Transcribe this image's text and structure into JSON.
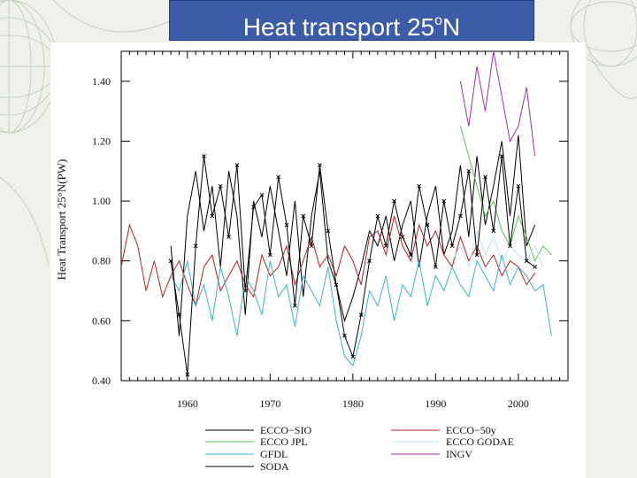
{
  "title": {
    "main": "Heat transport 25",
    "sup": "o",
    "end": "N"
  },
  "chart_data": {
    "type": "line",
    "title": "Heat transport 25oN",
    "xlabel": "",
    "ylabel": "Heat Transport 25°N(PW)",
    "xlim": [
      1952,
      2006
    ],
    "ylim": [
      0.4,
      1.5
    ],
    "xticks": [
      1960,
      1970,
      1980,
      1990,
      2000
    ],
    "yticks": [
      0.4,
      0.6,
      0.8,
      1.0,
      1.2,
      1.4
    ],
    "ytick_labels": [
      "0.40",
      "0.60",
      "0.80",
      "1.00",
      "1.20",
      "1.40"
    ],
    "series": [
      {
        "name": "ECCO−SIO",
        "color": "#000000",
        "x": [
          1958,
          1959,
          1960,
          1961,
          1962,
          1963,
          1964,
          1965,
          1966,
          1967,
          1968,
          1969,
          1970,
          1971,
          1972,
          1973,
          1974,
          1975,
          1976,
          1977,
          1978,
          1979,
          1980,
          1981,
          1982,
          1983,
          1984,
          1985,
          1986,
          1987,
          1988,
          1989,
          1990,
          1991,
          1992,
          1993,
          1994,
          1995,
          1996,
          1997,
          1998,
          1999,
          2000,
          2001,
          2002
        ],
        "values": [
          0.85,
          0.55,
          0.95,
          1.1,
          0.9,
          1.05,
          0.78,
          1.1,
          0.95,
          0.62,
          1.0,
          0.88,
          1.05,
          0.9,
          0.75,
          1.0,
          0.68,
          0.95,
          1.1,
          0.8,
          0.72,
          0.6,
          0.68,
          0.78,
          0.9,
          0.85,
          0.95,
          0.8,
          0.92,
          1.0,
          0.78,
          0.95,
          1.05,
          0.82,
          0.9,
          1.12,
          0.88,
          1.15,
          0.92,
          1.05,
          1.2,
          0.95,
          1.22,
          0.85,
          0.92
        ]
      },
      {
        "name": "ECCO−50y",
        "color": "#b22222",
        "x": [
          1952,
          1953,
          1954,
          1955,
          1956,
          1957,
          1958,
          1959,
          1960,
          1961,
          1962,
          1963,
          1964,
          1965,
          1966,
          1967,
          1968,
          1969,
          1970,
          1971,
          1972,
          1973,
          1974,
          1975,
          1976,
          1977,
          1978,
          1979,
          1980,
          1981,
          1982,
          1983,
          1984,
          1985,
          1986,
          1987,
          1988,
          1989,
          1990,
          1991,
          1992,
          1993,
          1994,
          1995,
          1996,
          1997,
          1998,
          1999,
          2000,
          2001,
          2002
        ],
        "values": [
          0.78,
          0.92,
          0.85,
          0.7,
          0.8,
          0.68,
          0.75,
          0.8,
          0.72,
          0.65,
          0.78,
          0.82,
          0.7,
          0.75,
          0.8,
          0.72,
          0.68,
          0.82,
          0.75,
          0.78,
          0.85,
          0.72,
          0.8,
          0.88,
          0.78,
          0.82,
          0.75,
          0.85,
          0.8,
          0.72,
          0.88,
          0.9,
          0.82,
          0.95,
          0.85,
          0.8,
          0.92,
          0.85,
          0.9,
          0.82,
          0.78,
          0.88,
          0.8,
          0.85,
          0.78,
          0.82,
          0.75,
          0.8,
          0.78,
          0.72,
          0.76
        ]
      },
      {
        "name": "ECCO JPL",
        "color": "#55c855",
        "x": [
          1993,
          1994,
          1995,
          1996,
          1997,
          1998,
          1999,
          2000,
          2001,
          2002,
          2003,
          2004
        ],
        "values": [
          1.25,
          1.15,
          1.05,
          0.95,
          1.0,
          0.9,
          0.85,
          0.95,
          0.88,
          0.8,
          0.85,
          0.82
        ]
      },
      {
        "name": "ECCO GODAE",
        "color": "#bfe3f5",
        "x": [
          1992,
          1993,
          1994,
          1995,
          1996,
          1997,
          1998,
          1999,
          2000,
          2001,
          2002,
          2003
        ],
        "values": [
          0.8,
          0.85,
          0.78,
          0.9,
          0.82,
          0.88,
          0.8,
          0.85,
          0.82,
          0.8,
          0.85,
          0.78
        ]
      },
      {
        "name": "GFDL",
        "color": "#3cb4c8",
        "x": [
          1958,
          1959,
          1960,
          1961,
          1962,
          1963,
          1964,
          1965,
          1966,
          1967,
          1968,
          1969,
          1970,
          1971,
          1972,
          1973,
          1974,
          1975,
          1976,
          1977,
          1978,
          1979,
          1980,
          1981,
          1982,
          1983,
          1984,
          1985,
          1986,
          1987,
          1988,
          1989,
          1990,
          1991,
          1992,
          1993,
          1994,
          1995,
          1996,
          1997,
          1998,
          1999,
          2000,
          2001,
          2002,
          2003,
          2004
        ],
        "values": [
          0.75,
          0.7,
          0.8,
          0.65,
          0.72,
          0.6,
          0.78,
          0.68,
          0.55,
          0.75,
          0.7,
          0.62,
          0.8,
          0.68,
          0.72,
          0.58,
          0.75,
          0.7,
          0.65,
          0.78,
          0.6,
          0.48,
          0.45,
          0.55,
          0.7,
          0.65,
          0.75,
          0.6,
          0.72,
          0.68,
          0.8,
          0.65,
          0.75,
          0.7,
          0.78,
          0.72,
          0.68,
          0.8,
          0.75,
          0.7,
          0.82,
          0.72,
          0.78,
          0.75,
          0.7,
          0.72,
          0.55
        ]
      },
      {
        "name": "INGV",
        "color": "#9933aa",
        "x": [
          1993,
          1994,
          1995,
          1996,
          1997,
          1998,
          1999,
          2000,
          2001,
          2002
        ],
        "values": [
          1.4,
          1.25,
          1.45,
          1.3,
          1.5,
          1.35,
          1.2,
          1.25,
          1.38,
          1.15
        ]
      },
      {
        "name": "SODA",
        "color": "#000000",
        "marker": "x",
        "x": [
          1958,
          1959,
          1960,
          1961,
          1962,
          1963,
          1964,
          1965,
          1966,
          1967,
          1968,
          1969,
          1970,
          1971,
          1972,
          1973,
          1974,
          1975,
          1976,
          1977,
          1978,
          1979,
          1980,
          1981,
          1982,
          1983,
          1984,
          1985,
          1986,
          1987,
          1988,
          1989,
          1990,
          1991,
          1992,
          1993,
          1994,
          1995,
          1996,
          1997,
          1998,
          1999,
          2000,
          2001,
          2002
        ],
        "values": [
          0.8,
          0.62,
          0.42,
          0.85,
          1.15,
          0.95,
          1.05,
          0.88,
          1.12,
          0.7,
          0.98,
          1.02,
          0.82,
          1.08,
          0.92,
          0.65,
          0.95,
          0.85,
          1.12,
          0.9,
          0.72,
          0.55,
          0.48,
          0.62,
          0.8,
          0.95,
          0.85,
          1.0,
          0.88,
          0.82,
          1.05,
          0.92,
          0.78,
          1.0,
          0.85,
          0.95,
          1.1,
          0.82,
          1.08,
          0.9,
          1.15,
          0.85,
          1.05,
          0.8,
          0.78
        ]
      }
    ],
    "legend": [
      {
        "label": "ECCO−SIO",
        "series": 0
      },
      {
        "label": "ECCO−50y",
        "series": 1
      },
      {
        "label": "ECCO  JPL",
        "series": 2
      },
      {
        "label": "ECCO  GODAE",
        "series": 3
      },
      {
        "label": "GFDL",
        "series": 4
      },
      {
        "label": "INGV",
        "series": 5
      },
      {
        "label": "SODA",
        "series": 6
      }
    ],
    "legend_position": "bottom"
  }
}
